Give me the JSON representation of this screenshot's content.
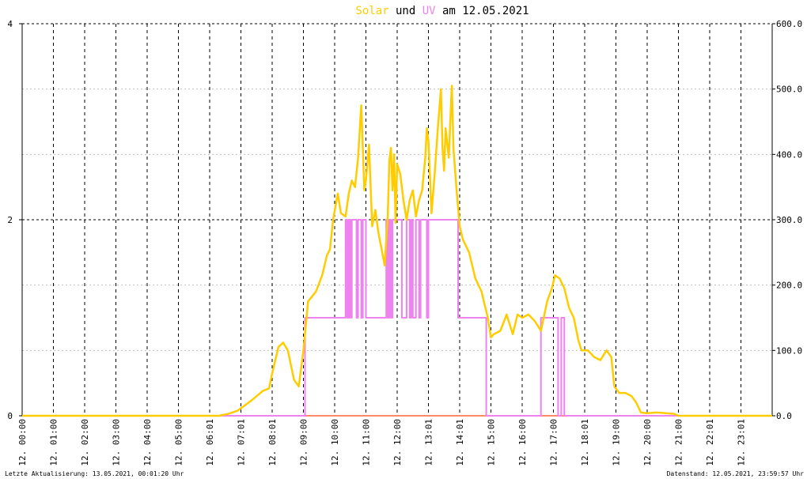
{
  "title": {
    "part1": "Solar",
    "part2": " und ",
    "part3": "UV",
    "part4": " am 12.05.2021",
    "color_solar": "#ffcc00",
    "color_uv": "#ee82ee",
    "color_text": "#000000"
  },
  "footer": {
    "left": "Letzte Aktualisierung: 13.05.2021, 00:01:20 Uhr",
    "right": "Datenstand: 12.05.2021, 23:59:57 Uhr"
  },
  "chart_data": {
    "type": "line",
    "x_range_hours": [
      0,
      24
    ],
    "x_tick_labels": [
      "12. 00:00",
      "12. 01:00",
      "12. 02:00",
      "12. 03:00",
      "12. 04:00",
      "12. 05:00",
      "12. 06:01",
      "12. 07:01",
      "12. 08:01",
      "12. 09:00",
      "12. 10:00",
      "12. 11:00",
      "12. 12:00",
      "12. 13:01",
      "12. 14:01",
      "12. 15:00",
      "12. 16:00",
      "12. 17:00",
      "12. 18:01",
      "12. 19:00",
      "12. 20:00",
      "12. 21:00",
      "12. 22:01",
      "12. 23:01"
    ],
    "y_left": {
      "range": [
        0,
        4
      ],
      "ticks": [
        "0",
        "2",
        "4"
      ]
    },
    "y_right": {
      "range": [
        0,
        600
      ],
      "ticks": [
        "0.0",
        "100.0",
        "200.0",
        "300.0",
        "400.0",
        "500.0",
        "600.0"
      ]
    },
    "grid": true,
    "series": [
      {
        "name": "Solar",
        "axis": "right",
        "color": "#ffcc00",
        "points": [
          [
            0,
            0
          ],
          [
            6.3,
            0
          ],
          [
            6.6,
            3
          ],
          [
            6.9,
            8
          ],
          [
            7.1,
            15
          ],
          [
            7.3,
            22
          ],
          [
            7.5,
            30
          ],
          [
            7.7,
            38
          ],
          [
            7.9,
            42
          ],
          [
            8.0,
            65
          ],
          [
            8.2,
            105
          ],
          [
            8.35,
            112
          ],
          [
            8.5,
            100
          ],
          [
            8.7,
            55
          ],
          [
            8.85,
            45
          ],
          [
            9.0,
            100
          ],
          [
            9.15,
            175
          ],
          [
            9.4,
            190
          ],
          [
            9.6,
            215
          ],
          [
            9.75,
            245
          ],
          [
            9.85,
            255
          ],
          [
            9.95,
            300
          ],
          [
            10.1,
            340
          ],
          [
            10.2,
            310
          ],
          [
            10.35,
            305
          ],
          [
            10.45,
            340
          ],
          [
            10.55,
            360
          ],
          [
            10.65,
            350
          ],
          [
            10.75,
            395
          ],
          [
            10.85,
            475
          ],
          [
            10.95,
            345
          ],
          [
            11.0,
            360
          ],
          [
            11.1,
            415
          ],
          [
            11.2,
            290
          ],
          [
            11.3,
            315
          ],
          [
            11.4,
            280
          ],
          [
            11.5,
            255
          ],
          [
            11.6,
            230
          ],
          [
            11.7,
            305
          ],
          [
            11.75,
            390
          ],
          [
            11.8,
            410
          ],
          [
            11.85,
            345
          ],
          [
            11.9,
            400
          ],
          [
            11.95,
            295
          ],
          [
            12.0,
            385
          ],
          [
            12.1,
            370
          ],
          [
            12.2,
            330
          ],
          [
            12.3,
            300
          ],
          [
            12.4,
            330
          ],
          [
            12.5,
            345
          ],
          [
            12.6,
            305
          ],
          [
            12.7,
            330
          ],
          [
            12.8,
            345
          ],
          [
            12.9,
            395
          ],
          [
            12.95,
            440
          ],
          [
            13.0,
            420
          ],
          [
            13.1,
            310
          ],
          [
            13.2,
            370
          ],
          [
            13.3,
            440
          ],
          [
            13.4,
            500
          ],
          [
            13.45,
            410
          ],
          [
            13.5,
            375
          ],
          [
            13.55,
            440
          ],
          [
            13.65,
            395
          ],
          [
            13.75,
            505
          ],
          [
            13.8,
            410
          ],
          [
            13.9,
            345
          ],
          [
            14.0,
            290
          ],
          [
            14.1,
            270
          ],
          [
            14.3,
            250
          ],
          [
            14.5,
            210
          ],
          [
            14.7,
            190
          ],
          [
            14.9,
            150
          ],
          [
            15.0,
            120
          ],
          [
            15.1,
            125
          ],
          [
            15.3,
            130
          ],
          [
            15.5,
            155
          ],
          [
            15.7,
            125
          ],
          [
            15.85,
            155
          ],
          [
            16.0,
            150
          ],
          [
            16.2,
            155
          ],
          [
            16.4,
            145
          ],
          [
            16.6,
            130
          ],
          [
            16.8,
            175
          ],
          [
            16.95,
            195
          ],
          [
            17.05,
            215
          ],
          [
            17.2,
            210
          ],
          [
            17.35,
            195
          ],
          [
            17.5,
            165
          ],
          [
            17.65,
            150
          ],
          [
            17.8,
            115
          ],
          [
            17.9,
            100
          ],
          [
            18.1,
            100
          ],
          [
            18.3,
            90
          ],
          [
            18.5,
            85
          ],
          [
            18.7,
            100
          ],
          [
            18.85,
            90
          ],
          [
            18.95,
            45
          ],
          [
            19.1,
            35
          ],
          [
            19.3,
            35
          ],
          [
            19.5,
            30
          ],
          [
            19.65,
            20
          ],
          [
            19.8,
            5
          ],
          [
            20.0,
            4
          ],
          [
            20.3,
            5
          ],
          [
            20.6,
            4
          ],
          [
            20.85,
            3
          ],
          [
            21.0,
            0
          ],
          [
            24,
            0
          ]
        ]
      },
      {
        "name": "UV",
        "axis": "left",
        "color": "#ee82ee",
        "points": [
          [
            0,
            0
          ],
          [
            9.05,
            0
          ],
          [
            9.05,
            1
          ],
          [
            10.35,
            1
          ],
          [
            10.35,
            2
          ],
          [
            10.4,
            2
          ],
          [
            10.4,
            1
          ],
          [
            10.45,
            1
          ],
          [
            10.45,
            2
          ],
          [
            10.5,
            2
          ],
          [
            10.5,
            1
          ],
          [
            10.55,
            1
          ],
          [
            10.55,
            2
          ],
          [
            10.7,
            2
          ],
          [
            10.7,
            1
          ],
          [
            10.75,
            1
          ],
          [
            10.75,
            2
          ],
          [
            10.85,
            2
          ],
          [
            10.85,
            1
          ],
          [
            10.9,
            1
          ],
          [
            10.9,
            2
          ],
          [
            11.0,
            2
          ],
          [
            11.0,
            1
          ],
          [
            11.65,
            1
          ],
          [
            11.65,
            2
          ],
          [
            11.7,
            2
          ],
          [
            11.7,
            1
          ],
          [
            11.75,
            1
          ],
          [
            11.75,
            2
          ],
          [
            11.8,
            2
          ],
          [
            11.8,
            1
          ],
          [
            11.85,
            1
          ],
          [
            11.85,
            2
          ],
          [
            12.15,
            2
          ],
          [
            12.15,
            1
          ],
          [
            12.3,
            1
          ],
          [
            12.3,
            2
          ],
          [
            12.4,
            2
          ],
          [
            12.4,
            1
          ],
          [
            12.45,
            1
          ],
          [
            12.45,
            2
          ],
          [
            12.5,
            2
          ],
          [
            12.5,
            1
          ],
          [
            12.6,
            1
          ],
          [
            12.6,
            2
          ],
          [
            12.7,
            2
          ],
          [
            12.7,
            1
          ],
          [
            12.75,
            1
          ],
          [
            12.75,
            2
          ],
          [
            12.95,
            2
          ],
          [
            12.95,
            1
          ],
          [
            13.0,
            1
          ],
          [
            13.0,
            2
          ],
          [
            13.95,
            2
          ],
          [
            13.95,
            1
          ],
          [
            14.85,
            1
          ],
          [
            14.85,
            0
          ],
          [
            16.6,
            0
          ],
          [
            16.6,
            1
          ],
          [
            17.15,
            1
          ],
          [
            17.15,
            0
          ],
          [
            17.25,
            0
          ],
          [
            17.25,
            1
          ],
          [
            17.35,
            1
          ],
          [
            17.35,
            0
          ],
          [
            24,
            0
          ]
        ]
      },
      {
        "name": "baseline",
        "axis": "left",
        "color": "#ff8a65",
        "points": [
          [
            0,
            0
          ],
          [
            24,
            0
          ]
        ]
      }
    ]
  }
}
